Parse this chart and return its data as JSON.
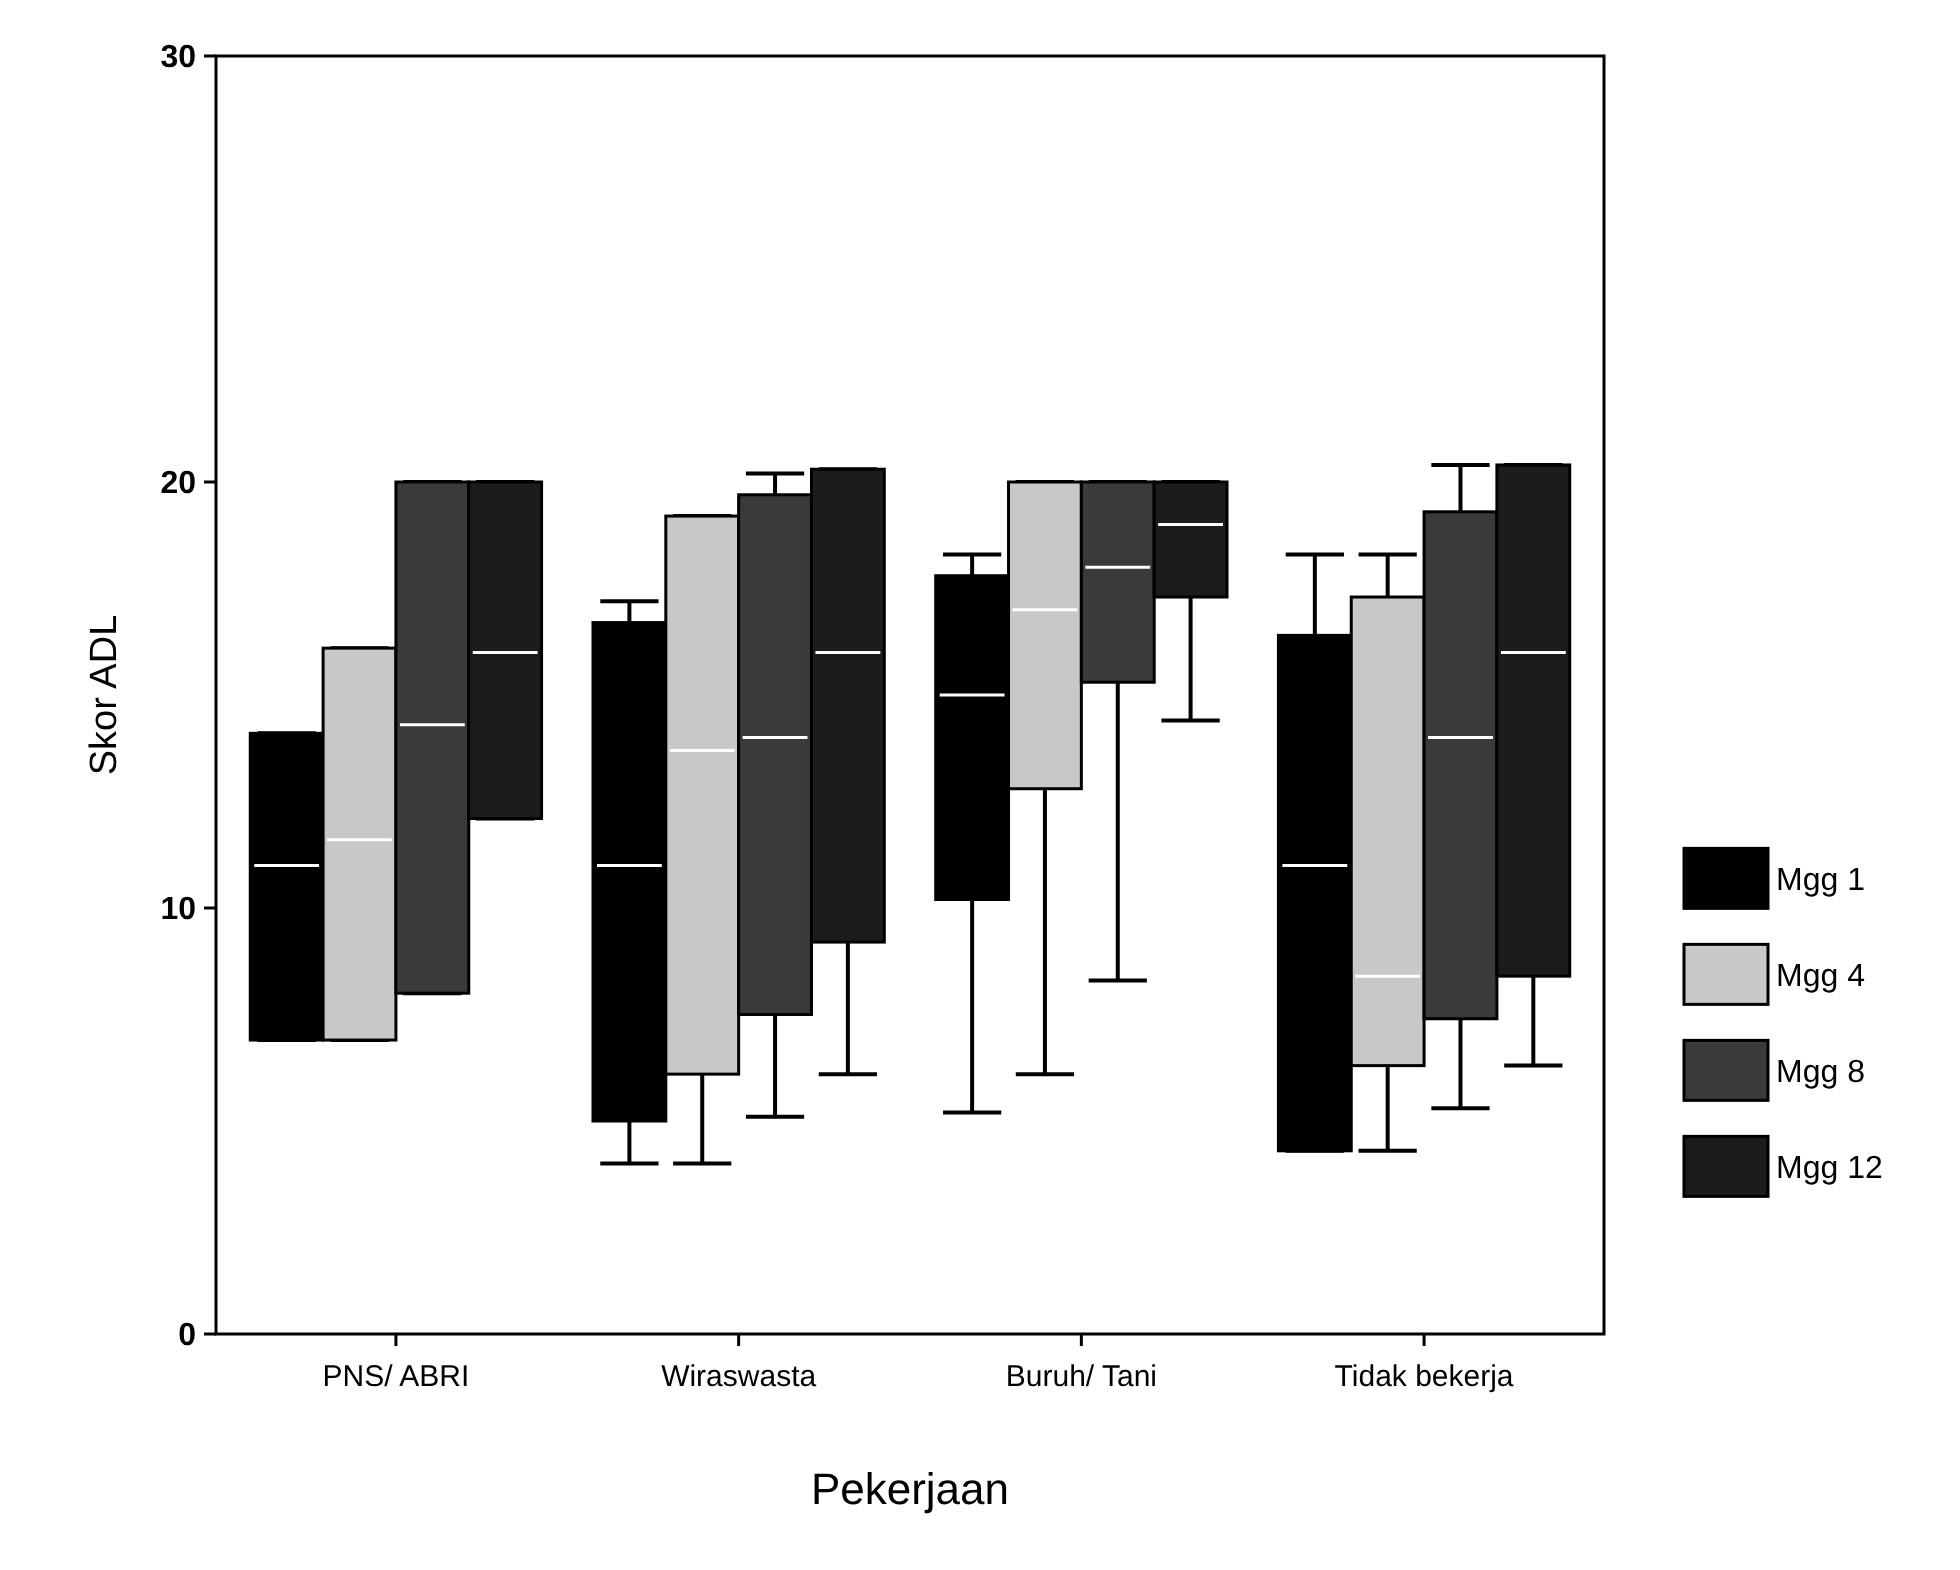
{
  "chart_data": {
    "type": "box",
    "xlabel": "Pekerjaan",
    "ylabel": "Skor ADL",
    "categories": [
      "PNS/ ABRI",
      "Wiraswasta",
      "Buruh/ Tani",
      "Tidak bekerja"
    ],
    "ylim": [
      0,
      30
    ],
    "yticks": [
      0,
      10,
      20,
      30
    ],
    "grid": false,
    "legend": "right",
    "series": [
      {
        "name": "Mgg 1",
        "color": "#000000",
        "boxes": [
          {
            "low": 6.9,
            "q1": 6.9,
            "median": 11,
            "q3": 14.1,
            "high": 14.1
          },
          {
            "low": 4.0,
            "q1": 5.0,
            "median": 11,
            "q3": 16.7,
            "high": 17.2
          },
          {
            "low": 5.2,
            "q1": 10.2,
            "median": 15,
            "q3": 17.8,
            "high": 18.3
          },
          {
            "low": 4.3,
            "q1": 4.3,
            "median": 11,
            "q3": 16.4,
            "high": 18.3
          }
        ]
      },
      {
        "name": "Mgg 4",
        "color": "#c8c8c8",
        "boxes": [
          {
            "low": 6.9,
            "q1": 6.9,
            "median": 11.6,
            "q3": 16.1,
            "high": 16.1
          },
          {
            "low": 4.0,
            "q1": 6.1,
            "median": 13.7,
            "q3": 19.2,
            "high": 19.2
          },
          {
            "low": 6.1,
            "q1": 12.8,
            "median": 17,
            "q3": 20,
            "high": 20
          },
          {
            "low": 4.3,
            "q1": 6.3,
            "median": 8.4,
            "q3": 17.3,
            "high": 18.3
          }
        ]
      },
      {
        "name": "Mgg 8",
        "color": "#3a3a3a",
        "boxes": [
          {
            "low": 8.0,
            "q1": 8.0,
            "median": 14.3,
            "q3": 20,
            "high": 20
          },
          {
            "low": 5.1,
            "q1": 7.5,
            "median": 14,
            "q3": 19.7,
            "high": 20.2
          },
          {
            "low": 8.3,
            "q1": 15.3,
            "median": 18,
            "q3": 20,
            "high": 20
          },
          {
            "low": 5.3,
            "q1": 7.4,
            "median": 14,
            "q3": 19.3,
            "high": 20.4
          }
        ]
      },
      {
        "name": "Mgg 12",
        "color": "#1c1c1c",
        "boxes": [
          {
            "low": 12.1,
            "q1": 12.1,
            "median": 16,
            "q3": 20,
            "high": 20
          },
          {
            "low": 6.1,
            "q1": 9.2,
            "median": 16,
            "q3": 20.3,
            "high": 20.3
          },
          {
            "low": 14.4,
            "q1": 17.3,
            "median": 19,
            "q3": 20,
            "high": 20
          },
          {
            "low": 6.3,
            "q1": 8.4,
            "median": 16,
            "q3": 20.4,
            "high": 20.4
          }
        ]
      }
    ]
  }
}
